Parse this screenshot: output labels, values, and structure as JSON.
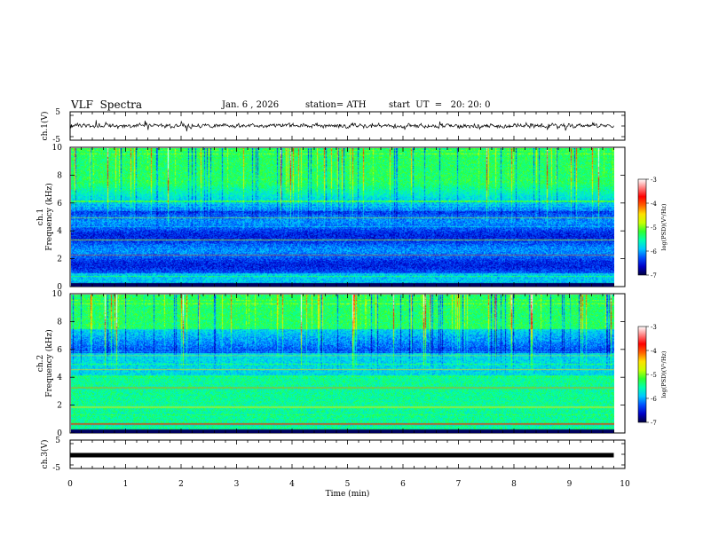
{
  "header": {
    "title": "VLF  Spectra",
    "date": "Jan. 6 , 2026",
    "station": "station= ATH",
    "start_ut": "start  UT  =   20: 20: 0"
  },
  "chart_data": {
    "type": "heatmap",
    "x": {
      "label": "Time  (min)",
      "range": [
        0,
        10
      ],
      "ticks": [
        0,
        1,
        2,
        3,
        4,
        5,
        6,
        7,
        8,
        9,
        10
      ],
      "data_end": 9.8
    },
    "panels": [
      {
        "name": "ch.1(V)",
        "kind": "waveform",
        "ylim": [
          -5,
          5
        ],
        "ticks": [
          "5",
          "-5"
        ]
      },
      {
        "name": "ch.1",
        "kind": "spectrogram",
        "ylabel": "Frequency  (kHz)",
        "ylim": [
          0,
          10
        ],
        "ticks": [
          0,
          2,
          4,
          6,
          8,
          10
        ],
        "colorbar": {
          "label": "log(PSD)(V²/Hz)",
          "range": [
            -7,
            -3
          ],
          "ticks": [
            "-3",
            "-4",
            "-5",
            "-6",
            "-7"
          ]
        }
      },
      {
        "name": "ch.2",
        "kind": "spectrogram",
        "ylabel": "Frequency  (kHz)",
        "ylim": [
          0,
          10
        ],
        "ticks": [
          0,
          2,
          4,
          6,
          8,
          10
        ],
        "colorbar": {
          "label": "log(PSD)(V²/Hz)",
          "range": [
            -7,
            -3
          ],
          "ticks": [
            "-3",
            "-4",
            "-5",
            "-6",
            "-7"
          ]
        }
      },
      {
        "name": "ch.3(V)",
        "kind": "waveform",
        "ylim": [
          -5,
          5
        ],
        "ticks": [
          "5",
          "-5"
        ],
        "flat_value": 0
      }
    ],
    "colorscale": [
      "#000040",
      "#0000c8",
      "#0050ff",
      "#00c8ff",
      "#00ffb0",
      "#30ff30",
      "#c8ff00",
      "#ffe000",
      "#ff6000",
      "#ff0000",
      "#ff8080",
      "#ffffff"
    ]
  }
}
